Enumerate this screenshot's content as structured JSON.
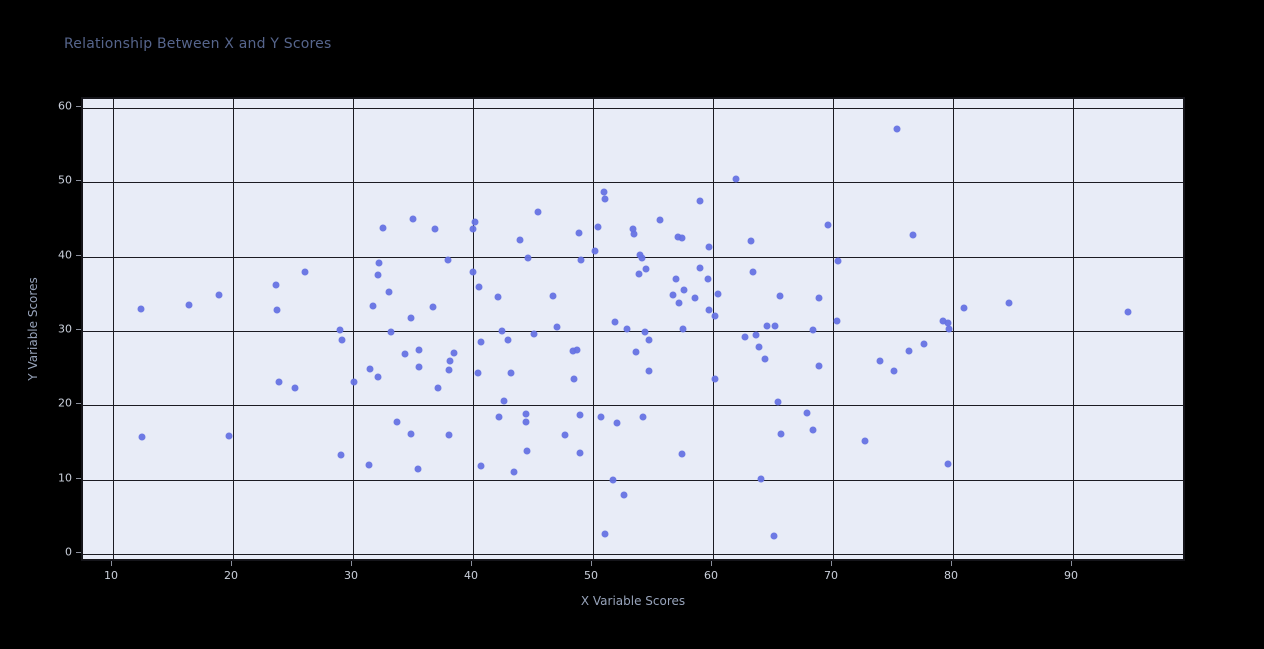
{
  "title": "Relationship Between X and Y Scores",
  "chart_data": {
    "type": "scatter",
    "title": "Relationship Between X and Y Scores",
    "xlabel": "X Variable Scores",
    "ylabel": "Y Variable Scores",
    "xlim": [
      7.5,
      99.5
    ],
    "ylim": [
      -1.2,
      61.2
    ],
    "xticks": [
      10,
      20,
      30,
      40,
      50,
      60,
      70,
      80,
      90
    ],
    "yticks": [
      0,
      10,
      20,
      30,
      40,
      50,
      60
    ],
    "grid": true,
    "legend": "none",
    "colors": {
      "point": "#6673e3",
      "plot_background": "#e8ecf7",
      "page_background": "#000000",
      "gridline": "#1b1b22",
      "title_text": "#56658c",
      "axis_label_text": "#97a3ba",
      "tick_text": "#c9cfda"
    },
    "points": [
      [
        12.3,
        33.0
      ],
      [
        16.3,
        33.5
      ],
      [
        18.8,
        34.8
      ],
      [
        23.6,
        36.2
      ],
      [
        23.7,
        32.8
      ],
      [
        26.0,
        38.0
      ],
      [
        12.4,
        15.7
      ],
      [
        19.7,
        15.9
      ],
      [
        23.8,
        23.2
      ],
      [
        25.2,
        22.4
      ],
      [
        35.0,
        45.1
      ],
      [
        32.5,
        43.9
      ],
      [
        36.8,
        43.7
      ],
      [
        40.2,
        44.6
      ],
      [
        40.0,
        43.7
      ],
      [
        37.9,
        39.6
      ],
      [
        32.2,
        39.1
      ],
      [
        32.1,
        37.5
      ],
      [
        40.0,
        38.0
      ],
      [
        40.5,
        35.9
      ],
      [
        33.0,
        35.3
      ],
      [
        42.1,
        34.6
      ],
      [
        31.7,
        33.4
      ],
      [
        36.7,
        33.2
      ],
      [
        34.8,
        31.8
      ],
      [
        28.9,
        30.2
      ],
      [
        29.1,
        28.8
      ],
      [
        33.2,
        29.9
      ],
      [
        42.4,
        30.0
      ],
      [
        40.7,
        28.5
      ],
      [
        42.9,
        28.8
      ],
      [
        34.3,
        26.9
      ],
      [
        35.5,
        27.4
      ],
      [
        38.4,
        27.0
      ],
      [
        38.1,
        26.0
      ],
      [
        31.4,
        24.9
      ],
      [
        35.5,
        25.1
      ],
      [
        38.0,
        24.7
      ],
      [
        32.1,
        23.8
      ],
      [
        30.1,
        23.2
      ],
      [
        40.4,
        24.4
      ],
      [
        43.2,
        24.4
      ],
      [
        37.1,
        22.3
      ],
      [
        42.6,
        20.6
      ],
      [
        42.2,
        18.5
      ],
      [
        33.7,
        17.8
      ],
      [
        34.8,
        16.1
      ],
      [
        38.0,
        16.0
      ],
      [
        29.0,
        13.3
      ],
      [
        31.3,
        12.0
      ],
      [
        35.4,
        11.5
      ],
      [
        40.7,
        11.9
      ],
      [
        43.4,
        11.1
      ],
      [
        50.9,
        48.7
      ],
      [
        51.0,
        47.7
      ],
      [
        58.9,
        47.5
      ],
      [
        45.4,
        46.0
      ],
      [
        55.6,
        44.9
      ],
      [
        50.4,
        44.0
      ],
      [
        48.8,
        43.2
      ],
      [
        53.3,
        43.7
      ],
      [
        53.4,
        43.0
      ],
      [
        57.1,
        42.7
      ],
      [
        57.4,
        42.5
      ],
      [
        43.9,
        42.2
      ],
      [
        59.7,
        41.3
      ],
      [
        50.2,
        40.8
      ],
      [
        44.6,
        39.8
      ],
      [
        49.0,
        39.5
      ],
      [
        53.9,
        40.2
      ],
      [
        54.1,
        39.8
      ],
      [
        54.4,
        38.3
      ],
      [
        53.8,
        37.7
      ],
      [
        58.9,
        38.5
      ],
      [
        56.9,
        37.0
      ],
      [
        59.6,
        37.0
      ],
      [
        60.4,
        35.0
      ],
      [
        56.7,
        34.9
      ],
      [
        57.6,
        35.5
      ],
      [
        58.5,
        34.5
      ],
      [
        57.2,
        33.8
      ],
      [
        46.7,
        34.7
      ],
      [
        59.7,
        32.8
      ],
      [
        60.2,
        32.0
      ],
      [
        51.8,
        31.2
      ],
      [
        47.0,
        30.6
      ],
      [
        45.1,
        29.6
      ],
      [
        54.3,
        29.9
      ],
      [
        52.8,
        30.3
      ],
      [
        57.5,
        30.3
      ],
      [
        54.7,
        28.8
      ],
      [
        48.3,
        27.3
      ],
      [
        48.7,
        27.5
      ],
      [
        53.6,
        27.2
      ],
      [
        54.7,
        24.6
      ],
      [
        48.4,
        23.6
      ],
      [
        60.2,
        23.5
      ],
      [
        44.4,
        18.9
      ],
      [
        44.4,
        17.7
      ],
      [
        48.9,
        18.7
      ],
      [
        50.7,
        18.4
      ],
      [
        52.0,
        17.6
      ],
      [
        54.2,
        18.4
      ],
      [
        47.7,
        16.0
      ],
      [
        44.5,
        13.8
      ],
      [
        48.9,
        13.6
      ],
      [
        57.4,
        13.5
      ],
      [
        51.7,
        9.9
      ],
      [
        52.6,
        8.0
      ],
      [
        51.0,
        2.7
      ],
      [
        75.3,
        57.1
      ],
      [
        61.9,
        50.4
      ],
      [
        69.6,
        44.2
      ],
      [
        76.7,
        42.9
      ],
      [
        63.2,
        42.1
      ],
      [
        70.4,
        39.4
      ],
      [
        63.3,
        38.0
      ],
      [
        65.6,
        34.7
      ],
      [
        68.8,
        34.4
      ],
      [
        64.5,
        30.7
      ],
      [
        65.2,
        30.7
      ],
      [
        70.3,
        31.3
      ],
      [
        68.3,
        30.1
      ],
      [
        62.7,
        29.2
      ],
      [
        63.6,
        29.4
      ],
      [
        63.8,
        27.9
      ],
      [
        64.3,
        26.3
      ],
      [
        68.8,
        25.3
      ],
      [
        73.9,
        26.0
      ],
      [
        76.3,
        27.3
      ],
      [
        77.6,
        28.3
      ],
      [
        75.1,
        24.6
      ],
      [
        65.4,
        20.5
      ],
      [
        67.8,
        19.0
      ],
      [
        65.7,
        16.2
      ],
      [
        68.3,
        16.7
      ],
      [
        72.7,
        15.2
      ],
      [
        64.0,
        10.1
      ],
      [
        65.1,
        2.4
      ],
      [
        80.9,
        33.1
      ],
      [
        84.7,
        33.7
      ],
      [
        94.6,
        32.6
      ],
      [
        79.2,
        31.4
      ],
      [
        79.6,
        31.1
      ],
      [
        79.7,
        30.3
      ],
      [
        79.6,
        12.1
      ]
    ]
  }
}
